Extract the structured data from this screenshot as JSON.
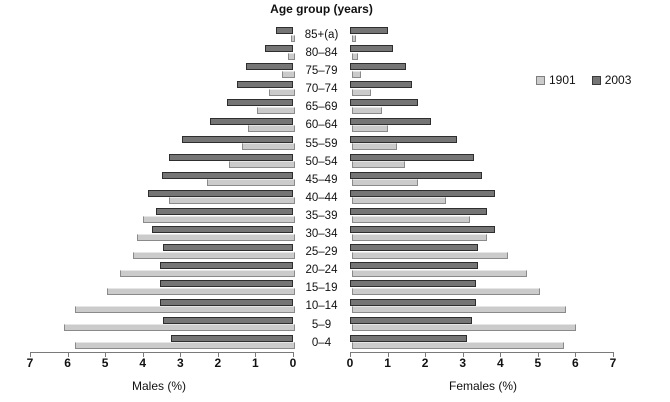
{
  "chart_data": {
    "type": "bar",
    "variant": "population_pyramid",
    "title": "Age group (years)",
    "categories_top_down": [
      "85+(a)",
      "80–84",
      "75–79",
      "70–74",
      "65–69",
      "60–64",
      "55–59",
      "50–54",
      "45–49",
      "40–44",
      "35–39",
      "30–34",
      "25–29",
      "20–24",
      "15–19",
      "10–14",
      "5–9",
      "0–4"
    ],
    "xlim": [
      0,
      7
    ],
    "male_axis_tick_labels": [
      "7",
      "6",
      "5",
      "4",
      "3",
      "2",
      "1",
      "0"
    ],
    "female_axis_tick_labels": [
      "0",
      "1",
      "2",
      "3",
      "4",
      "5",
      "6",
      "7"
    ],
    "xlabel_left": "Males (%)",
    "xlabel_right": "Females (%)",
    "grid": "off",
    "legend_position": "upper-right",
    "legend": [
      {
        "label": "1901",
        "color": "#cbcbcb"
      },
      {
        "label": "2003",
        "color": "#757575"
      }
    ],
    "series": [
      {
        "name": "1901",
        "side": "males",
        "color": "#cbcbcb",
        "values": [
          0.1,
          0.2,
          0.35,
          0.7,
          1.0,
          1.25,
          1.4,
          1.75,
          2.35,
          3.35,
          4.05,
          4.2,
          4.3,
          4.65,
          5.0,
          5.85,
          6.15,
          5.85
        ]
      },
      {
        "name": "2003",
        "side": "males",
        "color": "#757575",
        "values": [
          0.45,
          0.75,
          1.25,
          1.5,
          1.75,
          2.2,
          2.95,
          3.3,
          3.5,
          3.85,
          3.65,
          3.75,
          3.45,
          3.55,
          3.55,
          3.55,
          3.45,
          3.25
        ]
      },
      {
        "name": "1901",
        "side": "females",
        "color": "#cbcbcb",
        "values": [
          0.1,
          0.15,
          0.25,
          0.5,
          0.8,
          0.95,
          1.2,
          1.4,
          1.75,
          2.5,
          3.15,
          3.6,
          4.15,
          4.65,
          5.0,
          5.7,
          5.95,
          5.65
        ]
      },
      {
        "name": "2003",
        "side": "females",
        "color": "#757575",
        "values": [
          1.0,
          1.15,
          1.5,
          1.65,
          1.8,
          2.15,
          2.85,
          3.3,
          3.5,
          3.85,
          3.65,
          3.85,
          3.4,
          3.4,
          3.35,
          3.35,
          3.25,
          3.1
        ]
      }
    ]
  }
}
